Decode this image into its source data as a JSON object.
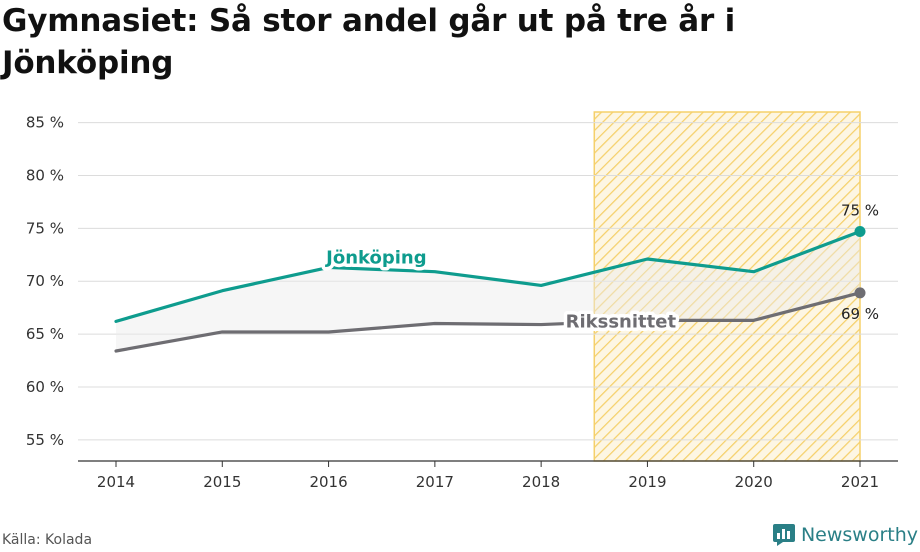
{
  "title": "Gymnasiet: Så stor andel går ut på tre år i Jönköping",
  "source": "Källa: Kolada",
  "brand": {
    "name": "Newsworthy",
    "icon": "newsworthy-logo-icon",
    "color": "#2a7f86"
  },
  "chart_data": {
    "type": "line",
    "title": "Gymnasiet: Så stor andel går ut på tre år i Jönköping",
    "x": [
      "2014",
      "2015",
      "2016",
      "2017",
      "2018",
      "2019",
      "2020",
      "2021"
    ],
    "ylim": [
      53,
      86
    ],
    "yticks": [
      55,
      60,
      65,
      70,
      75,
      80,
      85
    ],
    "ytick_labels": [
      "55 %",
      "60 %",
      "65 %",
      "70 %",
      "75 %",
      "80 %",
      "85 %"
    ],
    "grid": true,
    "series": [
      {
        "name": "Jönköping",
        "color": "#0e9c8e",
        "values": [
          66.2,
          69.1,
          71.3,
          70.9,
          69.6,
          72.1,
          70.9,
          74.7
        ],
        "end_label": "75 %"
      },
      {
        "name": "Rikssnittet",
        "color": "#6e6d72",
        "values": [
          63.4,
          65.2,
          65.2,
          66.0,
          65.9,
          66.3,
          66.3,
          68.9
        ],
        "end_label": "69 %"
      }
    ],
    "highlight_range": {
      "from": 2018.5,
      "to": 2021,
      "color": "#f5d06a",
      "pattern": "diagonal-hatch"
    }
  }
}
